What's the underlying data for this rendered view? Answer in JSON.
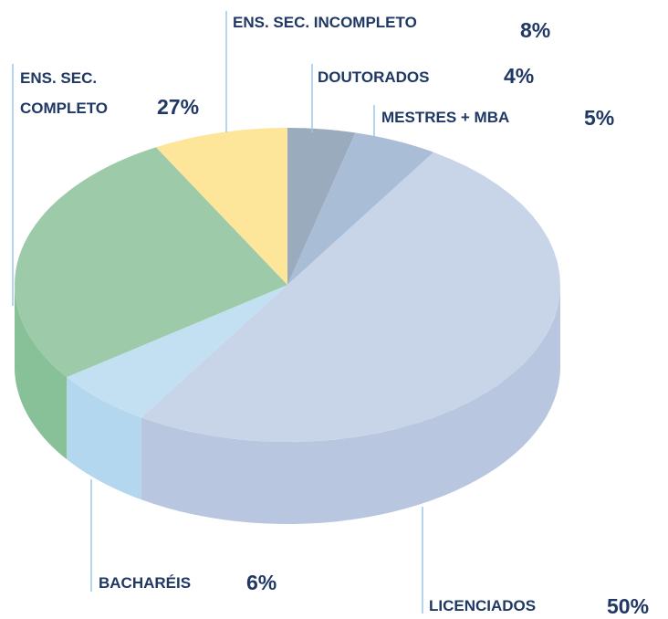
{
  "chart_data": {
    "type": "pie3d",
    "categories": [
      "DOUTORADOS",
      "MESTRES + MBA",
      "LICENCIADOS",
      "BACHARÉIS",
      "ENS. SEC. COMPLETO",
      "ENS. SEC. INCOMPLETO"
    ],
    "values": [
      4,
      5,
      50,
      6,
      27,
      8
    ],
    "value_labels": [
      "4%",
      "5%",
      "50%",
      "6%",
      "27%",
      "8%"
    ],
    "colors": [
      "#9aabbd",
      "#a9bdd6",
      "#c8d4e8",
      "#c3e0f2",
      "#9dcaa8",
      "#fde59a"
    ],
    "side_colors": [
      "#8a9bad",
      "#99adc6",
      "#b8c7df",
      "#b3d7ee",
      "#88c197",
      "#efd58a"
    ]
  }
}
